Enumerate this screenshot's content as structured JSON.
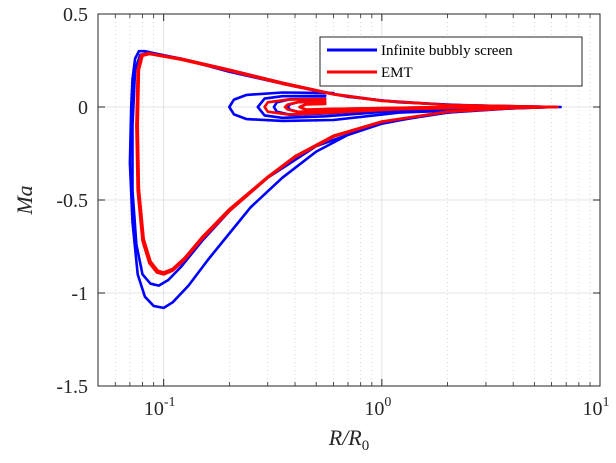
{
  "chart_data": {
    "type": "line",
    "xlabel": "R/R0",
    "ylabel": "Ma",
    "xscale": "log",
    "xlim": [
      0.05,
      10
    ],
    "ylim": [
      -1.5,
      0.5
    ],
    "grid": true,
    "minor_grid": true,
    "legend_position": "top-right",
    "x_ticks": [
      {
        "value": 0.1,
        "base": "10",
        "exp": "-1"
      },
      {
        "value": 1,
        "base": "10",
        "exp": "0"
      },
      {
        "value": 10,
        "base": "10",
        "exp": "1"
      }
    ],
    "y_ticks": [
      {
        "value": 0.5,
        "label": "0.5"
      },
      {
        "value": 0,
        "label": "0"
      },
      {
        "value": -0.5,
        "label": "-0.5"
      },
      {
        "value": -1,
        "label": "-1"
      },
      {
        "value": -1.5,
        "label": "-1.5"
      }
    ],
    "series": [
      {
        "name": "Infinite bubbly screen",
        "color": "#0000ff",
        "paths": [
          [
            [
              6.6,
              0.0
            ],
            [
              5.0,
              -0.002
            ],
            [
              3.0,
              -0.012
            ],
            [
              2.0,
              -0.03
            ],
            [
              1.5,
              -0.05
            ],
            [
              1.0,
              -0.09
            ],
            [
              0.7,
              -0.15
            ],
            [
              0.5,
              -0.24
            ],
            [
              0.35,
              -0.38
            ],
            [
              0.25,
              -0.54
            ],
            [
              0.2,
              -0.68
            ],
            [
              0.16,
              -0.82
            ],
            [
              0.13,
              -0.96
            ],
            [
              0.11,
              -1.05
            ],
            [
              0.1,
              -1.08
            ],
            [
              0.09,
              -1.07
            ],
            [
              0.082,
              -1.02
            ],
            [
              0.076,
              -0.9
            ],
            [
              0.072,
              -0.62
            ],
            [
              0.07,
              -0.3
            ],
            [
              0.071,
              0.0
            ],
            [
              0.072,
              0.15
            ],
            [
              0.074,
              0.26
            ],
            [
              0.077,
              0.3
            ],
            [
              0.082,
              0.3
            ],
            [
              0.09,
              0.29
            ],
            [
              0.12,
              0.26
            ],
            [
              0.2,
              0.2
            ],
            [
              0.35,
              0.13
            ],
            [
              0.6,
              0.07
            ],
            [
              1.0,
              0.035
            ],
            [
              2.0,
              0.012
            ],
            [
              4.0,
              0.004
            ],
            [
              6.6,
              0.0
            ]
          ],
          [
            [
              6.3,
              0.0
            ],
            [
              4.0,
              -0.007
            ],
            [
              2.0,
              -0.03
            ],
            [
              1.0,
              -0.085
            ],
            [
              0.5,
              -0.21
            ],
            [
              0.3,
              -0.38
            ],
            [
              0.2,
              -0.56
            ],
            [
              0.15,
              -0.72
            ],
            [
              0.12,
              -0.86
            ],
            [
              0.105,
              -0.93
            ],
            [
              0.095,
              -0.96
            ],
            [
              0.087,
              -0.95
            ],
            [
              0.08,
              -0.9
            ],
            [
              0.075,
              -0.74
            ],
            [
              0.072,
              -0.45
            ],
            [
              0.072,
              -0.1
            ],
            [
              0.074,
              0.2
            ],
            [
              0.078,
              0.28
            ],
            [
              0.085,
              0.29
            ],
            [
              0.12,
              0.26
            ],
            [
              0.2,
              0.19
            ],
            [
              0.4,
              0.11
            ],
            [
              0.7,
              0.055
            ],
            [
              1.2,
              0.025
            ],
            [
              2.5,
              0.008
            ],
            [
              6.3,
              0.0
            ]
          ],
          [
            [
              0.6,
              0.075
            ],
            [
              0.35,
              0.078
            ],
            [
              0.24,
              0.065
            ],
            [
              0.21,
              0.04
            ],
            [
              0.2,
              0.0
            ],
            [
              0.21,
              -0.04
            ],
            [
              0.24,
              -0.065
            ],
            [
              0.35,
              -0.075
            ],
            [
              0.6,
              -0.07
            ],
            [
              1.2,
              -0.03
            ],
            [
              6.0,
              0.0
            ]
          ],
          [
            [
              0.55,
              0.06
            ],
            [
              0.35,
              0.058
            ],
            [
              0.29,
              0.045
            ],
            [
              0.27,
              0.0
            ],
            [
              0.29,
              -0.045
            ],
            [
              0.35,
              -0.058
            ],
            [
              0.55,
              -0.05
            ],
            [
              1.2,
              -0.02
            ],
            [
              5.0,
              0.0
            ]
          ],
          [
            [
              0.55,
              0.045
            ],
            [
              0.38,
              0.042
            ],
            [
              0.33,
              0.025
            ],
            [
              0.32,
              0.0
            ],
            [
              0.33,
              -0.025
            ],
            [
              0.38,
              -0.042
            ],
            [
              0.55,
              -0.035
            ],
            [
              1.2,
              -0.012
            ],
            [
              4.0,
              0.0
            ]
          ],
          [
            [
              0.55,
              0.03
            ],
            [
              0.42,
              0.028
            ],
            [
              0.38,
              0.015
            ],
            [
              0.37,
              0.0
            ],
            [
              0.38,
              -0.015
            ],
            [
              0.42,
              -0.028
            ],
            [
              0.55,
              -0.022
            ],
            [
              3.0,
              0.0
            ]
          ],
          [
            [
              0.55,
              0.018
            ],
            [
              0.45,
              0.016
            ],
            [
              0.42,
              0.0
            ],
            [
              0.45,
              -0.016
            ],
            [
              0.55,
              -0.012
            ],
            [
              2.0,
              0.0
            ]
          ]
        ]
      },
      {
        "name": "EMT",
        "color": "#ff0000",
        "paths": [
          [
            [
              6.4,
              0.0
            ],
            [
              4.0,
              -0.006
            ],
            [
              2.0,
              -0.026
            ],
            [
              1.0,
              -0.08
            ],
            [
              0.6,
              -0.16
            ],
            [
              0.4,
              -0.27
            ],
            [
              0.3,
              -0.38
            ],
            [
              0.2,
              -0.56
            ],
            [
              0.15,
              -0.71
            ],
            [
              0.125,
              -0.82
            ],
            [
              0.11,
              -0.88
            ],
            [
              0.1,
              -0.9
            ],
            [
              0.093,
              -0.89
            ],
            [
              0.086,
              -0.84
            ],
            [
              0.08,
              -0.72
            ],
            [
              0.076,
              -0.45
            ],
            [
              0.075,
              -0.1
            ],
            [
              0.076,
              0.2
            ],
            [
              0.079,
              0.28
            ],
            [
              0.085,
              0.29
            ],
            [
              0.12,
              0.26
            ],
            [
              0.2,
              0.2
            ],
            [
              0.35,
              0.13
            ],
            [
              0.6,
              0.07
            ],
            [
              1.0,
              0.034
            ],
            [
              2.0,
              0.011
            ],
            [
              6.4,
              0.0
            ]
          ],
          [
            [
              6.3,
              0.0
            ],
            [
              4.0,
              -0.006
            ],
            [
              2.0,
              -0.025
            ],
            [
              1.0,
              -0.078
            ],
            [
              0.6,
              -0.155
            ],
            [
              0.4,
              -0.265
            ],
            [
              0.3,
              -0.375
            ],
            [
              0.2,
              -0.55
            ],
            [
              0.15,
              -0.7
            ],
            [
              0.125,
              -0.81
            ],
            [
              0.11,
              -0.87
            ],
            [
              0.1,
              -0.89
            ],
            [
              0.094,
              -0.88
            ],
            [
              0.087,
              -0.83
            ],
            [
              0.081,
              -0.71
            ],
            [
              0.077,
              -0.44
            ],
            [
              0.076,
              -0.1
            ],
            [
              0.077,
              0.2
            ],
            [
              0.08,
              0.275
            ],
            [
              0.086,
              0.285
            ],
            [
              0.12,
              0.255
            ],
            [
              0.2,
              0.195
            ],
            [
              0.35,
              0.125
            ],
            [
              0.6,
              0.068
            ],
            [
              1.0,
              0.033
            ],
            [
              2.0,
              0.011
            ],
            [
              6.3,
              0.0
            ]
          ],
          [
            [
              0.55,
              0.042
            ],
            [
              0.37,
              0.04
            ],
            [
              0.3,
              0.025
            ],
            [
              0.29,
              0.0
            ],
            [
              0.3,
              -0.025
            ],
            [
              0.37,
              -0.04
            ],
            [
              0.55,
              -0.032
            ],
            [
              1.2,
              -0.012
            ],
            [
              4.0,
              0.0
            ]
          ],
          [
            [
              0.55,
              0.028
            ],
            [
              0.41,
              0.026
            ],
            [
              0.37,
              0.013
            ],
            [
              0.36,
              0.0
            ],
            [
              0.37,
              -0.013
            ],
            [
              0.41,
              -0.026
            ],
            [
              0.55,
              -0.02
            ],
            [
              3.0,
              0.0
            ]
          ],
          [
            [
              0.55,
              0.016
            ],
            [
              0.45,
              0.014
            ],
            [
              0.42,
              0.0
            ],
            [
              0.45,
              -0.014
            ],
            [
              0.55,
              -0.011
            ],
            [
              2.0,
              0.0
            ]
          ]
        ]
      }
    ]
  }
}
